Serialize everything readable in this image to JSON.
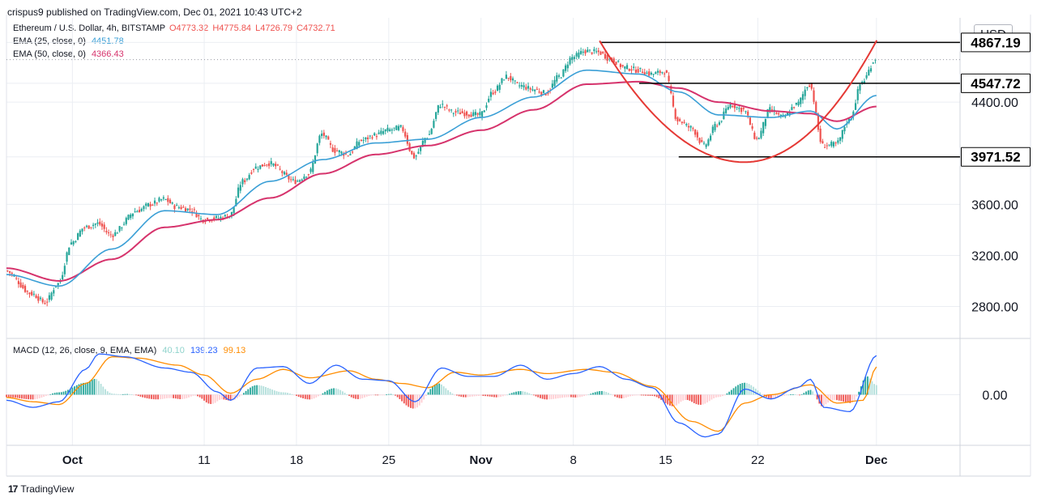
{
  "header": {
    "published": "crispus9 published on TradingView.com, Dec 01, 2021 10:43 UTC+2"
  },
  "legend": {
    "symbol": "Ethereum / U.S. Dollar, 4h, BITSTAMP",
    "open": "O4773.32",
    "high": "H4775.84",
    "low": "L4726.79",
    "close": "C4732.71",
    "ema25_label": "EMA (25, close, 0)",
    "ema25_value": "4451.78",
    "ema50_label": "EMA (50, close, 0)",
    "ema50_value": "4366.43",
    "macd_label": "MACD (12, 26, close, 9, EMA, EMA)",
    "macd_hist_value": "40.10",
    "macd_value": "139.23",
    "macd_signal_value": "99.13"
  },
  "currency_button": "USD",
  "footer": {
    "brand": "TradingView"
  },
  "colors": {
    "up": "#26a69a",
    "down": "#ef5350",
    "ema25": "#3a9fd6",
    "ema50": "#d6336c",
    "macd": "#2962ff",
    "signal": "#ff8c00",
    "cup": "#e53935",
    "grid": "#ebeef3"
  },
  "chart_data": [
    {
      "type": "line",
      "title": "Ethereum / U.S. Dollar, 4h, BITSTAMP",
      "y_scale": {
        "min": 2550,
        "max": 5060
      },
      "y_ticks": [
        2800,
        3200,
        3600,
        4400
      ],
      "y_tick_labels": [
        "2800.00",
        "3200.00",
        "3600.00",
        "4400.00"
      ],
      "x_ticks": [
        "Oct",
        "11",
        "18",
        "25",
        "Nov",
        "8",
        "15",
        "22",
        "Dec"
      ],
      "price_labels": [
        {
          "label": "4867.19",
          "value": 4867.19
        },
        {
          "label": "4547.72",
          "value": 4547.72
        },
        {
          "label": "3971.52",
          "value": 3971.52
        }
      ],
      "last_price": 4732.71,
      "price_path": [
        [
          "Sep 26",
          3080
        ],
        [
          "Sep 28",
          2900
        ],
        [
          "Sep 29",
          2830
        ],
        [
          "Sep 30",
          2980
        ],
        [
          "Oct 1",
          3300
        ],
        [
          "Oct 2",
          3420
        ],
        [
          "Oct 3",
          3450
        ],
        [
          "Oct 4",
          3360
        ],
        [
          "Oct 6",
          3550
        ],
        [
          "Oct 7",
          3600
        ],
        [
          "Oct 8",
          3640
        ],
        [
          "Oct 9",
          3580
        ],
        [
          "Oct 10",
          3560
        ],
        [
          "Oct 11",
          3480
        ],
        [
          "Oct 12",
          3490
        ],
        [
          "Oct 13",
          3510
        ],
        [
          "Oct 14",
          3780
        ],
        [
          "Oct 15",
          3890
        ],
        [
          "Oct 16",
          3920
        ],
        [
          "Oct 18",
          3780
        ],
        [
          "Oct 19",
          3840
        ],
        [
          "Oct 20",
          4150
        ],
        [
          "Oct 21",
          4020
        ],
        [
          "Oct 22",
          3990
        ],
        [
          "Oct 23",
          4100
        ],
        [
          "Oct 24",
          4140
        ],
        [
          "Oct 25",
          4180
        ],
        [
          "Oct 26",
          4200
        ],
        [
          "Oct 27",
          3970
        ],
        [
          "Oct 28",
          4130
        ],
        [
          "Oct 29",
          4380
        ],
        [
          "Oct 30",
          4320
        ],
        [
          "Nov 1",
          4300
        ],
        [
          "Nov 2",
          4480
        ],
        [
          "Nov 3",
          4600
        ],
        [
          "Nov 4",
          4530
        ],
        [
          "Nov 5",
          4500
        ],
        [
          "Nov 6",
          4470
        ],
        [
          "Nov 7",
          4600
        ],
        [
          "Nov 8",
          4750
        ],
        [
          "Nov 9",
          4800
        ],
        [
          "Nov 10",
          4790
        ],
        [
          "Nov 11",
          4730
        ],
        [
          "Nov 12",
          4670
        ],
        [
          "Nov 13",
          4650
        ],
        [
          "Nov 14",
          4620
        ],
        [
          "Nov 15",
          4640
        ],
        [
          "Nov 16",
          4260
        ],
        [
          "Nov 17",
          4200
        ],
        [
          "Nov 18",
          4060
        ],
        [
          "Nov 19",
          4230
        ],
        [
          "Nov 20",
          4380
        ],
        [
          "Nov 21",
          4340
        ],
        [
          "Nov 22",
          4110
        ],
        [
          "Nov 23",
          4340
        ],
        [
          "Nov 24",
          4280
        ],
        [
          "Nov 25",
          4380
        ],
        [
          "Nov 26",
          4540
        ],
        [
          "Nov 27",
          4060
        ],
        [
          "Nov 28",
          4070
        ],
        [
          "Nov 29",
          4260
        ],
        [
          "Nov 30",
          4560
        ],
        [
          "Dec 1",
          4733
        ]
      ],
      "ema25_path": [
        [
          "Sep 26",
          3050
        ],
        [
          "Sep 30",
          2960
        ],
        [
          "Oct 4",
          3250
        ],
        [
          "Oct 8",
          3550
        ],
        [
          "Oct 12",
          3520
        ],
        [
          "Oct 16",
          3780
        ],
        [
          "Oct 20",
          3950
        ],
        [
          "Oct 24",
          4080
        ],
        [
          "Oct 28",
          4110
        ],
        [
          "Nov 1",
          4280
        ],
        [
          "Nov 5",
          4440
        ],
        [
          "Nov 9",
          4650
        ],
        [
          "Nov 13",
          4620
        ],
        [
          "Nov 16",
          4480
        ],
        [
          "Nov 19",
          4300
        ],
        [
          "Nov 23",
          4280
        ],
        [
          "Nov 26",
          4330
        ],
        [
          "Nov 28",
          4190
        ],
        [
          "Dec 1",
          4452
        ]
      ],
      "ema50_path": [
        [
          "Sep 26",
          3100
        ],
        [
          "Sep 30",
          3000
        ],
        [
          "Oct 4",
          3170
        ],
        [
          "Oct 8",
          3420
        ],
        [
          "Oct 12",
          3480
        ],
        [
          "Oct 16",
          3650
        ],
        [
          "Oct 20",
          3840
        ],
        [
          "Oct 24",
          3990
        ],
        [
          "Oct 28",
          4060
        ],
        [
          "Nov 1",
          4180
        ],
        [
          "Nov 5",
          4340
        ],
        [
          "Nov 9",
          4540
        ],
        [
          "Nov 13",
          4560
        ],
        [
          "Nov 16",
          4510
        ],
        [
          "Nov 19",
          4400
        ],
        [
          "Nov 23",
          4330
        ],
        [
          "Nov 26",
          4310
        ],
        [
          "Nov 28",
          4250
        ],
        [
          "Dec 1",
          4366
        ]
      ],
      "annotations": {
        "hline_top": {
          "value": 4867.19,
          "from": "Nov 10",
          "to": "Dec 3"
        },
        "hline_mid": {
          "value": 4547.72,
          "from": "Nov 13",
          "to": "Dec 3"
        },
        "hline_low": {
          "value": 3971.52,
          "from": "Nov 16",
          "to": "Dec 3"
        },
        "cup": {
          "start": [
            "Nov 10",
            4880
          ],
          "bottom": [
            "Nov 21",
            3930
          ],
          "end": [
            "Dec 1",
            4880
          ]
        }
      }
    },
    {
      "type": "line",
      "title": "MACD (12, 26, close, 9, EMA, EMA)",
      "y_scale": {
        "min": -180,
        "max": 200
      },
      "y_ticks": [
        0
      ],
      "y_tick_labels": [
        "0.00"
      ],
      "series": [
        {
          "name": "MACD",
          "values": [
            [
              "Sep 26",
              -20
            ],
            [
              "Sep 28",
              -45
            ],
            [
              "Sep 30",
              -25
            ],
            [
              "Oct 2",
              90
            ],
            [
              "Oct 3",
              145
            ],
            [
              "Oct 5",
              135
            ],
            [
              "Oct 8",
              95
            ],
            [
              "Oct 10",
              80
            ],
            [
              "Oct 12",
              10
            ],
            [
              "Oct 13",
              -20
            ],
            [
              "Oct 15",
              95
            ],
            [
              "Oct 17",
              100
            ],
            [
              "Oct 19",
              40
            ],
            [
              "Oct 21",
              105
            ],
            [
              "Oct 23",
              55
            ],
            [
              "Oct 25",
              50
            ],
            [
              "Oct 27",
              -25
            ],
            [
              "Oct 29",
              95
            ],
            [
              "Oct 31",
              65
            ],
            [
              "Nov 2",
              65
            ],
            [
              "Nov 4",
              105
            ],
            [
              "Nov 6",
              55
            ],
            [
              "Nov 8",
              75
            ],
            [
              "Nov 10",
              100
            ],
            [
              "Nov 12",
              55
            ],
            [
              "Nov 14",
              25
            ],
            [
              "Nov 16",
              -100
            ],
            [
              "Nov 18",
              -150
            ],
            [
              "Nov 19",
              -140
            ],
            [
              "Nov 21",
              20
            ],
            [
              "Nov 23",
              -15
            ],
            [
              "Nov 25",
              25
            ],
            [
              "Nov 26",
              55
            ],
            [
              "Nov 27",
              -45
            ],
            [
              "Nov 29",
              -60
            ],
            [
              "Dec 1",
              139
            ]
          ]
        },
        {
          "name": "Signal",
          "values": [
            [
              "Sep 26",
              -10
            ],
            [
              "Sep 28",
              -25
            ],
            [
              "Sep 30",
              -35
            ],
            [
              "Oct 2",
              40
            ],
            [
              "Oct 4",
              135
            ],
            [
              "Oct 6",
              130
            ],
            [
              "Oct 9",
              105
            ],
            [
              "Oct 11",
              70
            ],
            [
              "Oct 13",
              5
            ],
            [
              "Oct 15",
              55
            ],
            [
              "Oct 17",
              90
            ],
            [
              "Oct 19",
              60
            ],
            [
              "Oct 22",
              85
            ],
            [
              "Oct 24",
              55
            ],
            [
              "Oct 26",
              40
            ],
            [
              "Oct 28",
              25
            ],
            [
              "Oct 30",
              80
            ],
            [
              "Nov 1",
              70
            ],
            [
              "Nov 4",
              90
            ],
            [
              "Nov 6",
              75
            ],
            [
              "Nov 9",
              90
            ],
            [
              "Nov 11",
              80
            ],
            [
              "Nov 14",
              30
            ],
            [
              "Nov 17",
              -95
            ],
            [
              "Nov 19",
              -130
            ],
            [
              "Nov 21",
              -30
            ],
            [
              "Nov 23",
              0
            ],
            [
              "Nov 26",
              35
            ],
            [
              "Nov 28",
              -30
            ],
            [
              "Nov 30",
              -20
            ],
            [
              "Dec 1",
              99
            ]
          ]
        }
      ]
    }
  ]
}
